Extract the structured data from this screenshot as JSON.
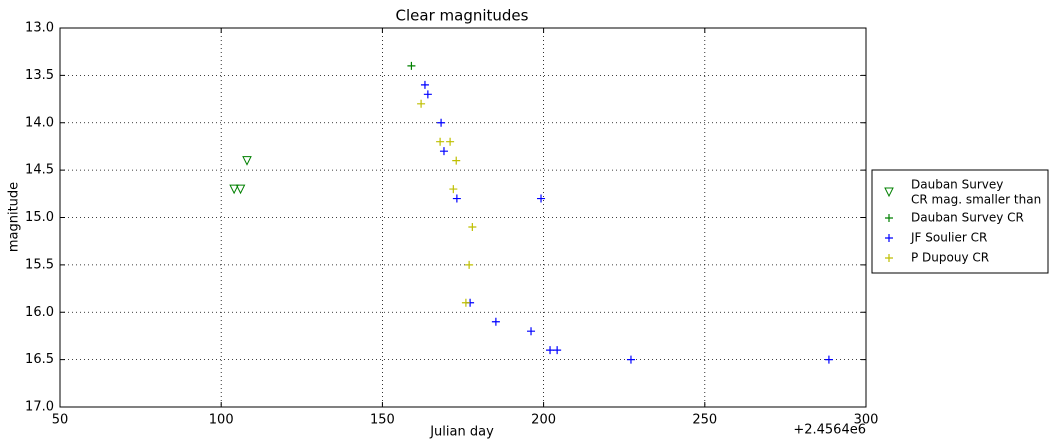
{
  "chart_data": {
    "type": "scatter",
    "title": "Clear magnitudes",
    "x_label": "Julian day",
    "y_label": "magnitude",
    "x_offset_text": "+2.4564e6",
    "xlim": [
      50,
      300
    ],
    "xticks": [
      50,
      100,
      150,
      200,
      250,
      300
    ],
    "ylim": [
      17,
      13
    ],
    "yticks": [
      {
        "value": 13,
        "label": "13.0"
      },
      {
        "value": 13.5,
        "label": "13.5"
      },
      {
        "value": 14,
        "label": "14.0"
      },
      {
        "value": 14.5,
        "label": "14.5"
      },
      {
        "value": 15,
        "label": "15.0"
      },
      {
        "value": 15.5,
        "label": "15.5"
      },
      {
        "value": 16,
        "label": "16.0"
      },
      {
        "value": 16.5,
        "label": "16.5"
      },
      {
        "value": 17,
        "label": "17.0"
      }
    ],
    "grid": true,
    "legend": "right",
    "series": [
      {
        "name": "Dauban Survey\nCR mag. smaller than",
        "color": "#008000",
        "marker": "triangle-down",
        "x": [
          108,
          104,
          106
        ],
        "values": [
          14.4,
          14.7,
          14.7
        ]
      },
      {
        "name": "Dauban Survey CR",
        "color": "#008000",
        "marker": "plus",
        "x": [
          159
        ],
        "values": [
          13.4
        ]
      },
      {
        "name": "JF Soulier CR",
        "color": "#0000ff",
        "marker": "plus",
        "x": [
          163.2,
          164.1,
          168.2,
          169.1,
          173.1,
          199.2,
          177.2,
          185.2,
          196.1,
          202,
          204.2,
          227.1,
          288.5
        ],
        "values": [
          13.6,
          13.7,
          14.0,
          14.3,
          14.8,
          14.8,
          15.9,
          16.1,
          16.2,
          16.4,
          16.4,
          16.5,
          16.5
        ]
      },
      {
        "name": "P Dupouy CR",
        "color": "#bfbf00",
        "marker": "plus",
        "x": [
          162,
          167.9,
          171,
          172.9,
          172,
          177.9,
          176.9,
          175.9
        ],
        "values": [
          13.8,
          14.2,
          14.2,
          14.4,
          14.7,
          15.1,
          15.5,
          15.9
        ]
      }
    ]
  }
}
